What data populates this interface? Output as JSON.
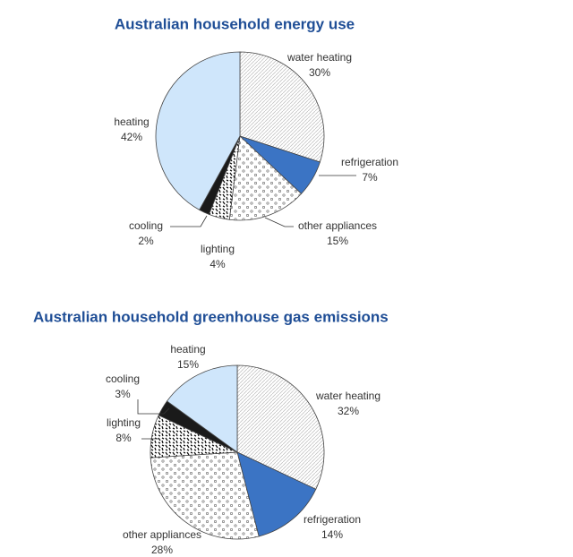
{
  "chart_data": [
    {
      "type": "pie",
      "title": "Australian household energy use",
      "categories": [
        "water heating",
        "refrigeration",
        "other appliances",
        "lighting",
        "cooling",
        "heating"
      ],
      "values": [
        30,
        7,
        15,
        4,
        2,
        42
      ],
      "value_labels": [
        "30%",
        "7%",
        "15%",
        "4%",
        "2%",
        "42%"
      ],
      "colors": [
        "#ffffff",
        "#3b74c4",
        "#ffffff",
        "#ffffff",
        "#1a1a1a",
        "#cfe6fb"
      ],
      "patterns": [
        "hatch",
        "none",
        "dots",
        "confetti",
        "none",
        "none"
      ]
    },
    {
      "type": "pie",
      "title": "Australian household greenhouse gas emissions",
      "categories": [
        "water heating",
        "refrigeration",
        "other appliances",
        "lighting",
        "cooling",
        "heating"
      ],
      "values": [
        32,
        14,
        28,
        8,
        3,
        15
      ],
      "value_labels": [
        "32%",
        "14%",
        "28%",
        "8%",
        "3%",
        "15%"
      ],
      "colors": [
        "#ffffff",
        "#3b74c4",
        "#ffffff",
        "#ffffff",
        "#1a1a1a",
        "#cfe6fb"
      ],
      "patterns": [
        "hatch",
        "none",
        "dots",
        "confetti",
        "none",
        "none"
      ]
    }
  ]
}
